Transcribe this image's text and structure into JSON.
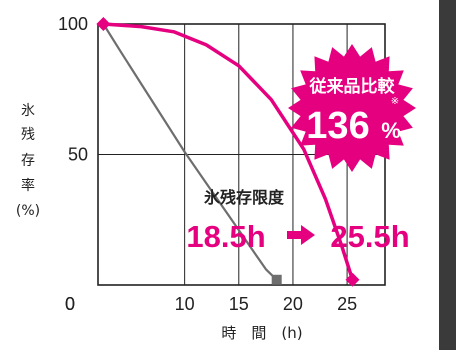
{
  "chart_data": {
    "type": "line",
    "xlabel": "時　間　(h)",
    "ylabel_chars": [
      "氷",
      "残",
      "存",
      "率"
    ],
    "ylabel_unit": "(%)",
    "xlim": [
      2,
      28.5
    ],
    "ylim": [
      0,
      100
    ],
    "xticks": [
      0,
      10,
      15,
      20,
      25
    ],
    "yticks": [
      0,
      50,
      100
    ],
    "grid": true,
    "series": [
      {
        "points": [
          [
            2.5,
            100
          ],
          [
            4,
            90
          ],
          [
            6,
            77
          ],
          [
            8,
            64
          ],
          [
            10,
            51
          ],
          [
            12,
            39
          ],
          [
            14,
            27
          ],
          [
            16,
            15
          ],
          [
            17.5,
            6
          ],
          [
            18.5,
            2
          ]
        ],
        "color": "#6e6e6e",
        "end_marker": "square"
      },
      {
        "points": [
          [
            2.5,
            100
          ],
          [
            6,
            99
          ],
          [
            9,
            97
          ],
          [
            12,
            92
          ],
          [
            15,
            84
          ],
          [
            18,
            71
          ],
          [
            21,
            52
          ],
          [
            23,
            33
          ],
          [
            24.5,
            15
          ],
          [
            25.5,
            2
          ]
        ],
        "color": "#e5007f",
        "end_marker": "diamond"
      }
    ],
    "annotations": {
      "limit_title": "氷残存限度",
      "limit_from": "18.5h",
      "limit_to": "25.5h",
      "badge_line1": "従来品比較",
      "badge_value": "136",
      "badge_unit": "%",
      "badge_note": "※"
    }
  },
  "colors": {
    "accent": "#e5007f",
    "baseline_series": "#6e6e6e"
  }
}
